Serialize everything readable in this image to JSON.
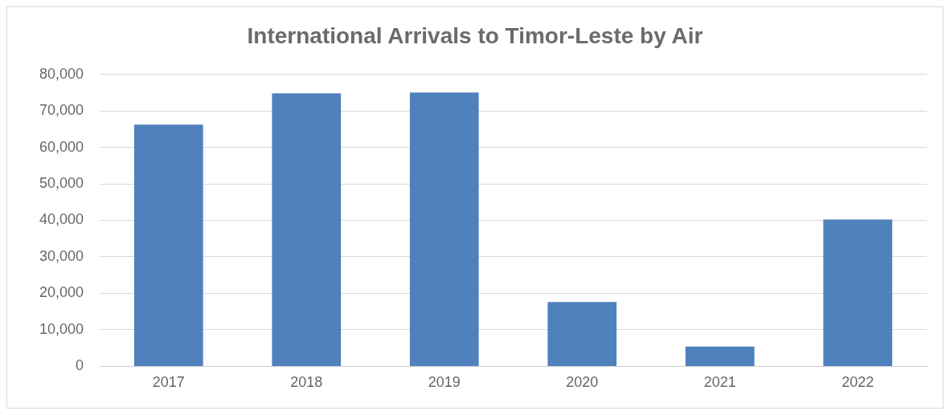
{
  "chart_data": {
    "type": "bar",
    "title": "International Arrivals to Timor-Leste by Air",
    "categories": [
      "2017",
      "2018",
      "2019",
      "2020",
      "2021",
      "2022"
    ],
    "values": [
      66200,
      74800,
      75000,
      17600,
      5400,
      40200
    ],
    "color": "#4f81bd",
    "ylim": [
      0,
      80000
    ],
    "yticks": [
      {
        "value": 0,
        "label": "0"
      },
      {
        "value": 10000,
        "label": "10,000"
      },
      {
        "value": 20000,
        "label": "20,000"
      },
      {
        "value": 30000,
        "label": "30,000"
      },
      {
        "value": 40000,
        "label": "40,000"
      },
      {
        "value": 50000,
        "label": "50,000"
      },
      {
        "value": 60000,
        "label": "60,000"
      },
      {
        "value": 70000,
        "label": "70,000"
      },
      {
        "value": 80000,
        "label": "80,000"
      }
    ],
    "grid": "y",
    "legend": false
  }
}
